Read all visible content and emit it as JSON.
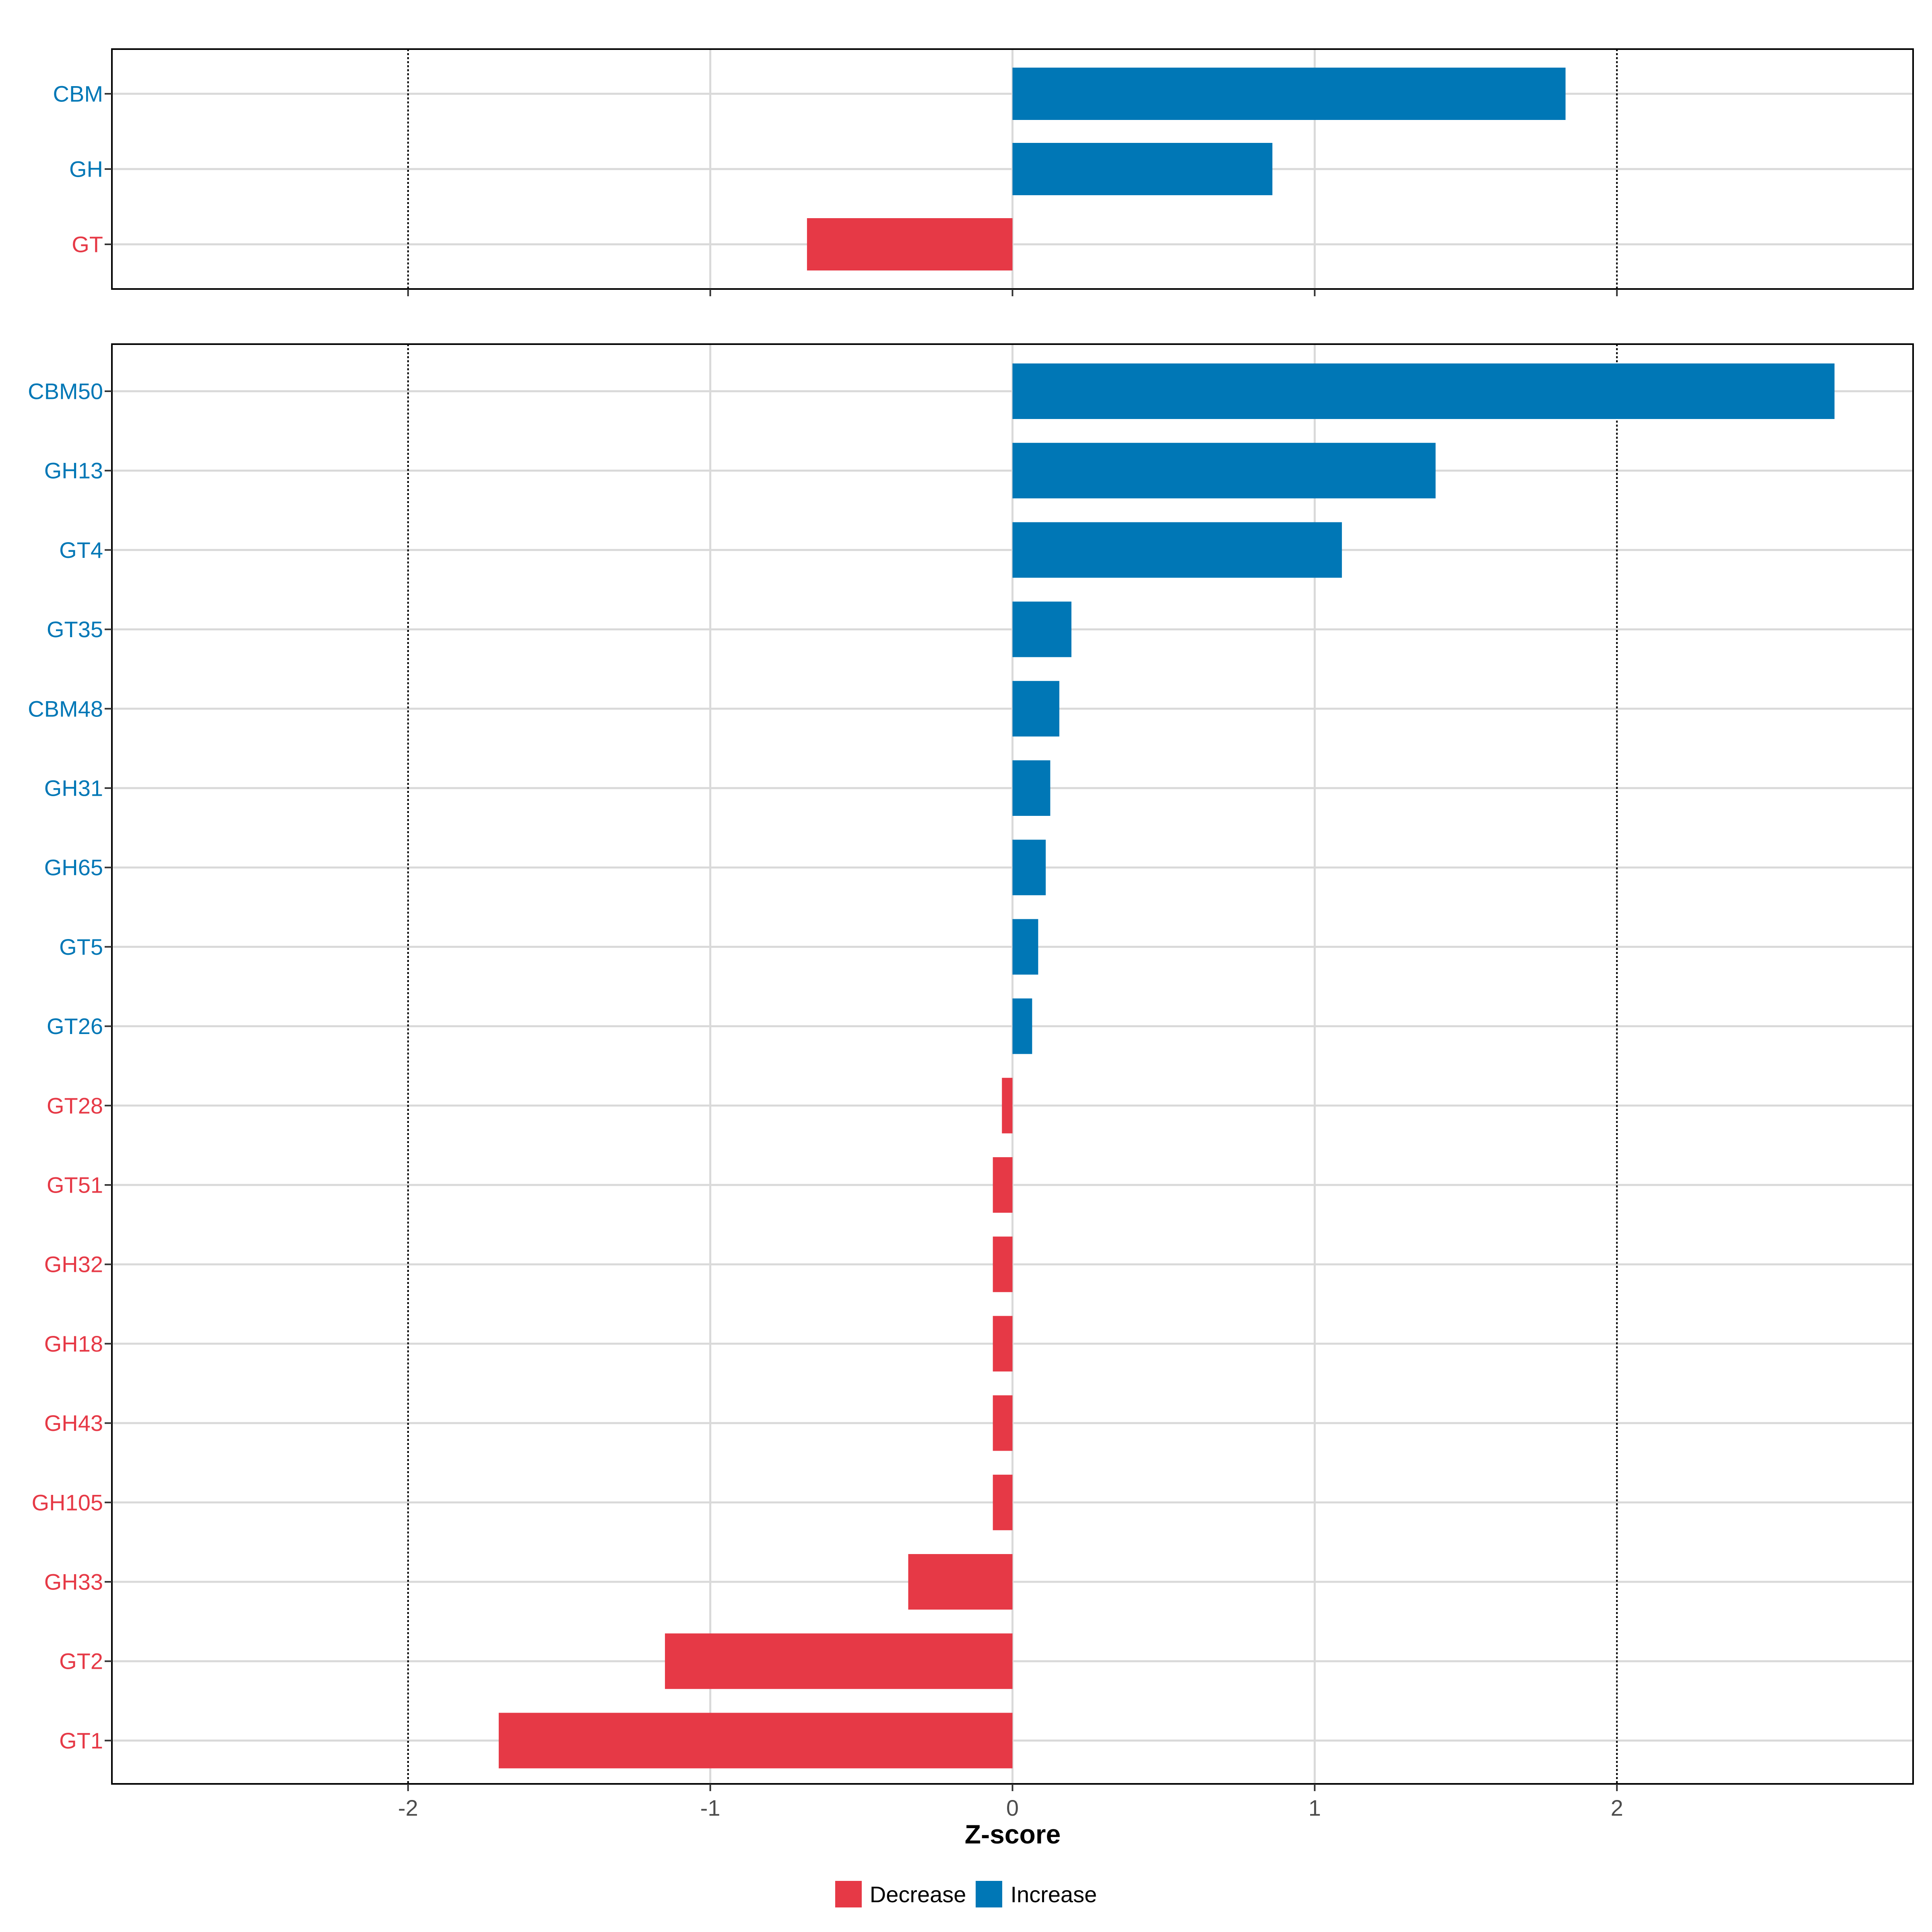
{
  "colors": {
    "increase": "#0077B6",
    "decrease": "#E63946",
    "grid": "#D9D9D9",
    "panel_border": "#000000",
    "reference_line": "#000000"
  },
  "chart_data": {
    "type": "bar",
    "orientation": "horizontal",
    "xlabel": "Z-score",
    "xlim": [
      -2.98,
      2.98
    ],
    "x_ticks": [
      -2,
      -1,
      0,
      1,
      2
    ],
    "x_tick_labels": [
      "-2",
      "-1",
      "0",
      "1",
      "2"
    ],
    "reference_lines_dotted": [
      -2,
      2
    ],
    "grid": true,
    "legend_position": "bottom",
    "legend": [
      {
        "label": "Decrease",
        "color": "#E63946"
      },
      {
        "label": "Increase",
        "color": "#0077B6"
      }
    ],
    "panels": [
      {
        "categories": [
          "CBM",
          "GH",
          "GT"
        ],
        "values": [
          1.83,
          0.86,
          -0.68
        ],
        "direction": [
          "Increase",
          "Increase",
          "Decrease"
        ]
      },
      {
        "categories": [
          "CBM50",
          "GH13",
          "GT4",
          "GT35",
          "CBM48",
          "GH31",
          "GH65",
          "GT5",
          "GT26",
          "GT28",
          "GT51",
          "GH32",
          "GH18",
          "GH43",
          "GH105",
          "GH33",
          "GT2",
          "GT1"
        ],
        "values": [
          2.72,
          1.4,
          1.09,
          0.195,
          0.155,
          0.125,
          0.11,
          0.085,
          0.065,
          -0.035,
          -0.065,
          -0.065,
          -0.065,
          -0.065,
          -0.065,
          -0.345,
          -1.15,
          -1.7
        ],
        "direction": [
          "Increase",
          "Increase",
          "Increase",
          "Increase",
          "Increase",
          "Increase",
          "Increase",
          "Increase",
          "Increase",
          "Decrease",
          "Decrease",
          "Decrease",
          "Decrease",
          "Decrease",
          "Decrease",
          "Decrease",
          "Decrease",
          "Decrease"
        ]
      }
    ]
  }
}
